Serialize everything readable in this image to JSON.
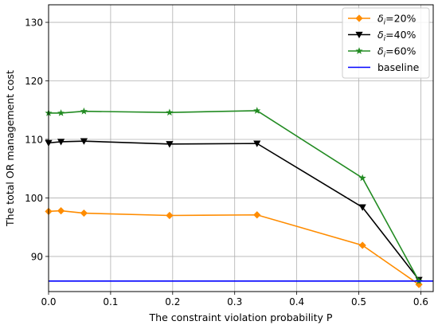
{
  "chart_data": {
    "type": "line",
    "xlabel": "The constraint violation probability P",
    "ylabel": "The total OR management cost",
    "xlim": [
      0,
      0.62
    ],
    "ylim": [
      84,
      133
    ],
    "x_ticks": [
      0.0,
      0.1,
      0.2,
      0.3,
      0.4,
      0.5,
      0.6
    ],
    "x_tick_labels": [
      "0.0",
      "0.1",
      "0.2",
      "0.3",
      "0.4",
      "0.5",
      "0.6"
    ],
    "y_ticks": [
      90,
      100,
      110,
      120,
      130
    ],
    "y_tick_labels": [
      "90",
      "100",
      "110",
      "120",
      "130"
    ],
    "grid": true,
    "legend_position": "top-right",
    "series": [
      {
        "name_prefix": "δ",
        "name_sub": "i",
        "name_suffix": "=20%",
        "color": "#ff8c00",
        "marker": "diamond",
        "x": [
          0.0,
          0.02,
          0.057,
          0.195,
          0.336,
          0.506,
          0.597
        ],
        "y": [
          97.7,
          97.8,
          97.4,
          97.0,
          97.1,
          91.9,
          85.2
        ]
      },
      {
        "name_prefix": "δ",
        "name_sub": "i",
        "name_suffix": "=40%",
        "color": "#000000",
        "marker": "triangle-down",
        "x": [
          0.0,
          0.02,
          0.057,
          0.195,
          0.336,
          0.506,
          0.597
        ],
        "y": [
          109.4,
          109.6,
          109.7,
          109.2,
          109.3,
          98.4,
          86.0
        ]
      },
      {
        "name_prefix": "δ",
        "name_sub": "i",
        "name_suffix": "=60%",
        "color": "#228b22",
        "marker": "star",
        "x": [
          0.0,
          0.02,
          0.057,
          0.195,
          0.336,
          0.506,
          0.597
        ],
        "y": [
          114.5,
          114.5,
          114.8,
          114.6,
          114.9,
          103.4,
          85.8
        ]
      },
      {
        "name": "baseline",
        "color": "#0000ff",
        "marker": "none",
        "x": [
          0.0,
          0.62
        ],
        "y": [
          85.8,
          85.8
        ]
      }
    ]
  }
}
